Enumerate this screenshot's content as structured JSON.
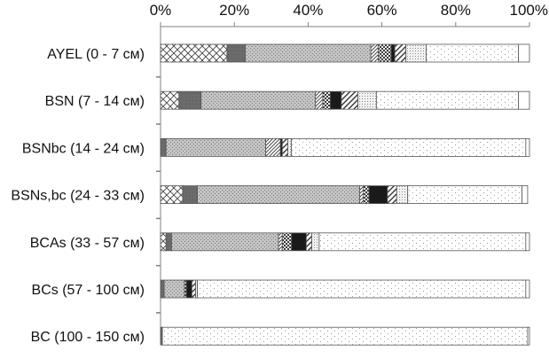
{
  "chart_data": {
    "type": "bar",
    "orientation": "horizontal",
    "stacked": true,
    "percent": true,
    "title": "",
    "xlabel": "",
    "ylabel": "",
    "xlim": [
      0,
      100
    ],
    "x_ticks": [
      "0%",
      "20%",
      "40%",
      "60%",
      "80%",
      "100%"
    ],
    "x_axis_position": "top",
    "grid": false,
    "legend": "none",
    "categories": [
      "AYEL (0 - 7 см)",
      "BSN (7 - 14 см)",
      "BSNbc (14 - 24 см)",
      "BSNs,bc (24 - 33 см)",
      "BCAs (33 - 57 см)",
      "BCs (57 - 100 см)",
      "BC (100 - 150 см)"
    ],
    "series": [
      {
        "pattern": "crosshatch",
        "values": [
          18,
          5,
          0,
          6,
          1.5,
          0,
          0
        ]
      },
      {
        "pattern": "dark-gray",
        "values": [
          5,
          6,
          1.5,
          4,
          1.5,
          1,
          0.5
        ]
      },
      {
        "pattern": "gray-dotted",
        "values": [
          34,
          31,
          27,
          44,
          29,
          5.5,
          0
        ]
      },
      {
        "pattern": "diagonal-dense",
        "values": [
          2,
          2,
          4,
          1,
          1,
          0,
          0
        ]
      },
      {
        "pattern": "dark-check",
        "values": [
          3.5,
          2,
          0,
          1.5,
          2.5,
          0.5,
          0
        ]
      },
      {
        "pattern": "black",
        "values": [
          1,
          3,
          0.5,
          5,
          4,
          1.5,
          0
        ]
      },
      {
        "pattern": "diagonal-wide",
        "values": [
          3,
          4.5,
          1.5,
          2.5,
          1.5,
          1,
          0
        ]
      },
      {
        "pattern": "white-dotted",
        "values": [
          5.5,
          5,
          1,
          3,
          2,
          0.5,
          0
        ]
      },
      {
        "pattern": "sparse-dotted",
        "values": [
          25,
          38.5,
          63.5,
          31,
          56,
          89,
          99
        ]
      },
      {
        "pattern": "white",
        "values": [
          3,
          3,
          1,
          1.5,
          1,
          1,
          0.5
        ]
      }
    ],
    "colors": {
      "outline": "#555555",
      "axis": "#808080",
      "black": "#1a1a1a",
      "dark_gray": "#6b6b6b",
      "gray": "#c2c2c2"
    }
  }
}
